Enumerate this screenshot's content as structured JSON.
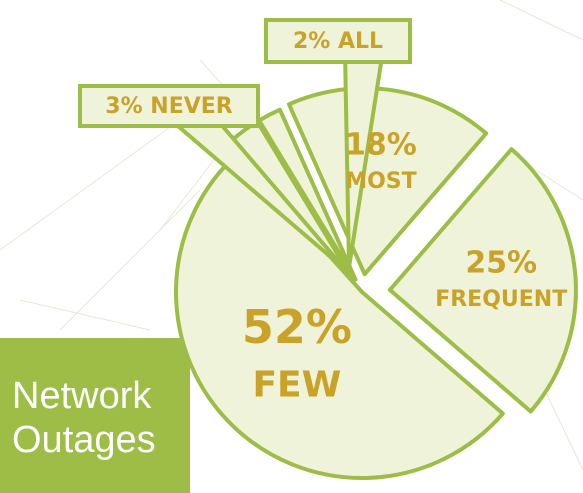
{
  "chart_data": {
    "type": "pie",
    "title": "Network Outages",
    "categories": [
      "NEVER",
      "ALL",
      "MOST",
      "FREQUENT",
      "FEW"
    ],
    "values": [
      3,
      2,
      18,
      25,
      52
    ],
    "value_labels": [
      "3%",
      "2%",
      "18%",
      "25%",
      "52%"
    ],
    "color": "#eef3d9",
    "edge_color": "#9ebd46",
    "label_color": "#c9a227"
  }
}
